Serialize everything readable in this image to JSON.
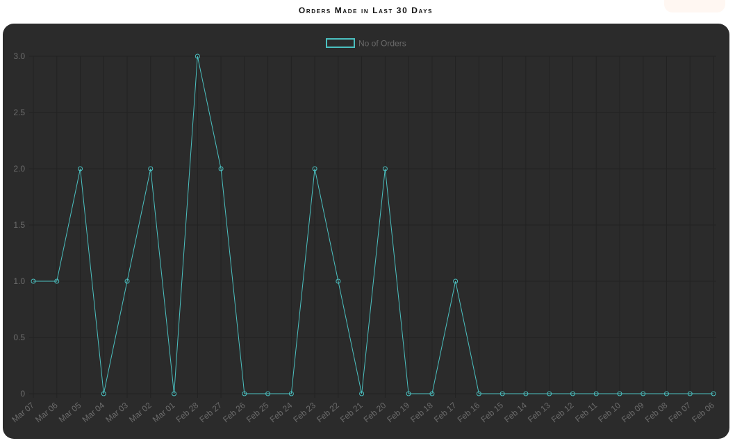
{
  "page": {
    "title": "Orders Made in Last 30 Days"
  },
  "colors": {
    "panel_bg": "#2b2b2b",
    "grid": "#222222",
    "line": "#4bc0c0",
    "tick_text": "#6b6b6b"
  },
  "chart_data": {
    "type": "line",
    "title": "Orders Made in Last 30 Days",
    "xlabel": "",
    "ylabel": "",
    "ylim": [
      0,
      3
    ],
    "y_ticks": [
      "0",
      "0.5",
      "1.0",
      "1.5",
      "2.0",
      "2.5",
      "3.0"
    ],
    "grid": true,
    "legend_position": "top-center",
    "categories": [
      "Mar 07",
      "Mar 06",
      "Mar 05",
      "Mar 04",
      "Mar 03",
      "Mar 02",
      "Mar 01",
      "Feb 28",
      "Feb 27",
      "Feb 26",
      "Feb 25",
      "Feb 24",
      "Feb 23",
      "Feb 22",
      "Feb 21",
      "Feb 20",
      "Feb 19",
      "Feb 18",
      "Feb 17",
      "Feb 16",
      "Feb 15",
      "Feb 14",
      "Feb 13",
      "Feb 12",
      "Feb 11",
      "Feb 10",
      "Feb 09",
      "Feb 08",
      "Feb 07",
      "Feb 06"
    ],
    "series": [
      {
        "name": "No of Orders",
        "color": "#4bc0c0",
        "values": [
          1,
          1,
          2,
          0,
          1,
          2,
          0,
          3,
          2,
          0,
          0,
          0,
          2,
          1,
          0,
          2,
          0,
          0,
          1,
          0,
          0,
          0,
          0,
          0,
          0,
          0,
          0,
          0,
          0,
          0
        ]
      }
    ]
  }
}
